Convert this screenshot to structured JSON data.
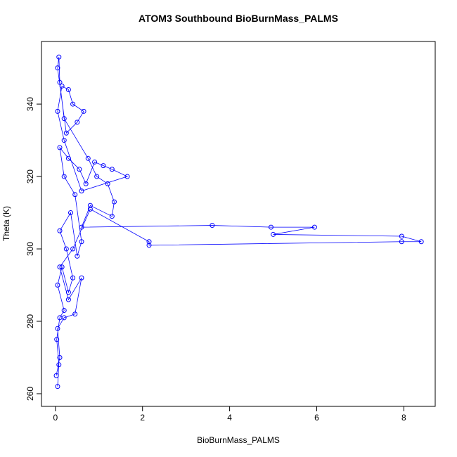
{
  "chart_data": {
    "type": "scatter",
    "title": "ATOM3 Southbound BioBurnMass_PALMS",
    "x_label": "BioBurnMass_PALMS",
    "y_label": "Theta (K)",
    "xlim": [
      -0.32,
      8.72
    ],
    "ylim": [
      256.5,
      357.3
    ],
    "xticks": [
      0,
      2,
      4,
      6,
      8
    ],
    "yticks": [
      260,
      280,
      300,
      320,
      340
    ],
    "connect": true,
    "series": [
      {
        "color": "#0000ff",
        "x": [
          0.05,
          0.08,
          0.03,
          0.1,
          0.2,
          0.05,
          0.15,
          0.3,
          0.4,
          0.25,
          0.1,
          0.35,
          0.5,
          0.6,
          0.45,
          0.2,
          0.1,
          0.3,
          0.55,
          0.7,
          0.9,
          1.1,
          1.3,
          1.65,
          0.6,
          0.2,
          0.05,
          0.15,
          0.3,
          0.4,
          0.65,
          0.5,
          0.25,
          0.05,
          0.08,
          0.1,
          0.2,
          0.75,
          0.95,
          1.2,
          1.35,
          1.3,
          0.8,
          0.6,
          3.6,
          4.95,
          5.95,
          5.0,
          7.95,
          8.4,
          7.95,
          2.15,
          2.15,
          0.8,
          0.4,
          0.1,
          0.3,
          0.6,
          0.45,
          0.2,
          0.05,
          0.1,
          0.02
        ],
        "values": [
          262,
          268,
          275,
          281,
          283,
          290,
          295,
          288,
          292,
          300,
          305,
          310,
          298,
          302,
          315,
          320,
          328,
          325,
          322,
          318,
          324,
          323,
          322,
          320,
          316,
          330,
          338,
          345,
          344,
          340,
          338,
          335,
          332,
          350,
          353,
          346,
          336,
          325,
          320,
          318,
          313,
          309,
          312,
          306,
          306.5,
          306,
          306,
          304,
          303.5,
          302,
          302,
          301,
          302,
          311,
          300,
          295,
          286,
          292,
          282,
          281,
          278,
          270,
          265
        ]
      }
    ]
  }
}
